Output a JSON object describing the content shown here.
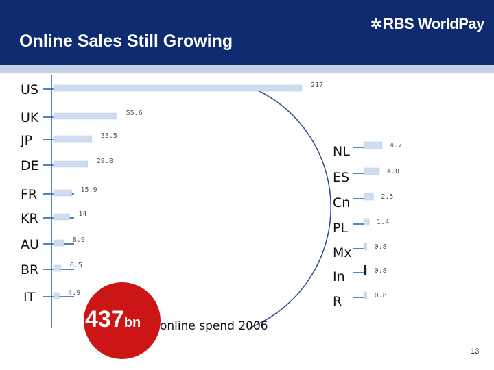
{
  "header": {
    "title": "Online Sales Still Growing",
    "logo_text": "RBS WorldPay",
    "logo_icon": "rbs-daisy-wheel-icon"
  },
  "chart_data": [
    {
      "type": "bar",
      "orientation": "horizontal",
      "categories": [
        "US",
        "UK",
        "JP",
        "DE",
        "FR",
        "KR",
        "AU",
        "BR",
        "IT"
      ],
      "values": [
        217,
        55.6,
        33.5,
        29.8,
        15.9,
        14,
        8.9,
        6.5,
        4.9
      ],
      "value_labels": [
        "217",
        "55.6",
        "33.5",
        "29.8",
        "15.9",
        "14",
        "8.9",
        "6.5",
        "4.9"
      ],
      "xlim": [
        0,
        217
      ]
    },
    {
      "type": "bar",
      "orientation": "horizontal",
      "categories": [
        "NL",
        "ES",
        "Cn",
        "PL",
        "Mx",
        "In",
        "R"
      ],
      "values": [
        4.7,
        4.0,
        2.5,
        1.4,
        0.8,
        0.8,
        0.8
      ],
      "value_labels": [
        "4.7",
        "4.0",
        "2.5",
        "1.4",
        "0.8",
        "0.8",
        "0.8"
      ],
      "xlim": [
        0,
        4.7
      ]
    }
  ],
  "badge": {
    "value": "437",
    "unit": "bn",
    "color": "#cc1515"
  },
  "note": "online spend  2006",
  "page_number": "13",
  "colors": {
    "header": "#0d2b6e",
    "stripe": "#c5d2e6",
    "bar": "#cddcef",
    "leader": "#1a5fa8",
    "es_label": "#e07b1a"
  }
}
